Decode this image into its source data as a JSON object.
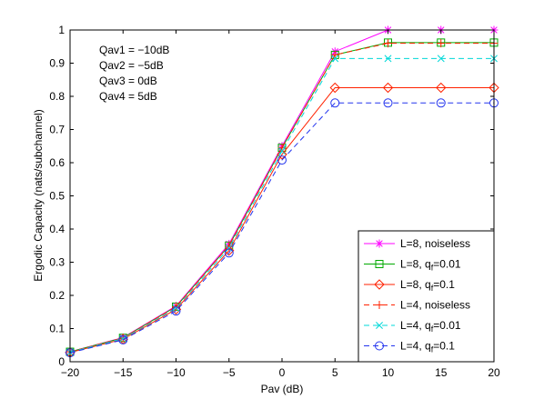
{
  "chart_data": {
    "type": "line",
    "title": "",
    "xlabel": "Pav (dB)",
    "ylabel": "Ergodic Capacity (nats/subchannel)",
    "xlim": [
      -20,
      20
    ],
    "ylim": [
      0,
      1
    ],
    "xticks": [
      -20,
      -15,
      -10,
      -5,
      0,
      5,
      10,
      15,
      20
    ],
    "yticks": [
      0,
      0.1,
      0.2,
      0.3,
      0.4,
      0.5,
      0.6,
      0.7,
      0.8,
      0.9,
      1
    ],
    "grid": false,
    "legend_position": "bottom-right",
    "annotations": [
      "Qav1 = −10dB",
      "Qav2 = −5dB",
      "Qav3 = 0dB",
      "Qav4 = 5dB"
    ],
    "x": [
      -20,
      -15,
      -10,
      -5,
      0,
      5,
      10,
      15,
      20
    ],
    "series": [
      {
        "name": "L=8, noiseless",
        "color": "#ff00ff",
        "dash": "solid",
        "marker": "star",
        "values": [
          0.03,
          0.073,
          0.168,
          0.355,
          0.65,
          0.935,
          1.0,
          1.0,
          1.0
        ]
      },
      {
        "name": "L=8, q_f=0.01",
        "color": "#00aa00",
        "dash": "solid",
        "marker": "square",
        "values": [
          0.03,
          0.072,
          0.166,
          0.35,
          0.645,
          0.925,
          0.962,
          0.962,
          0.962
        ]
      },
      {
        "name": "L=8, q_f=0.1",
        "color": "#ff2200",
        "dash": "solid",
        "marker": "diamond",
        "values": [
          0.028,
          0.068,
          0.158,
          0.335,
          0.625,
          0.826,
          0.826,
          0.826,
          0.826
        ]
      },
      {
        "name": "L=4, noiseless",
        "color": "#ff2200",
        "dash": "dashed",
        "marker": "plus",
        "values": [
          0.03,
          0.072,
          0.166,
          0.35,
          0.645,
          0.925,
          0.96,
          0.96,
          0.96
        ]
      },
      {
        "name": "L=4, q_f=0.01",
        "color": "#00d8d8",
        "dash": "dashed",
        "marker": "x",
        "values": [
          0.029,
          0.07,
          0.162,
          0.343,
          0.635,
          0.914,
          0.914,
          0.914,
          0.914
        ]
      },
      {
        "name": "L=4, q_f=0.1",
        "color": "#2233ee",
        "dash": "dashed",
        "marker": "circle",
        "values": [
          0.027,
          0.066,
          0.153,
          0.328,
          0.608,
          0.78,
          0.78,
          0.78,
          0.78
        ]
      }
    ]
  }
}
